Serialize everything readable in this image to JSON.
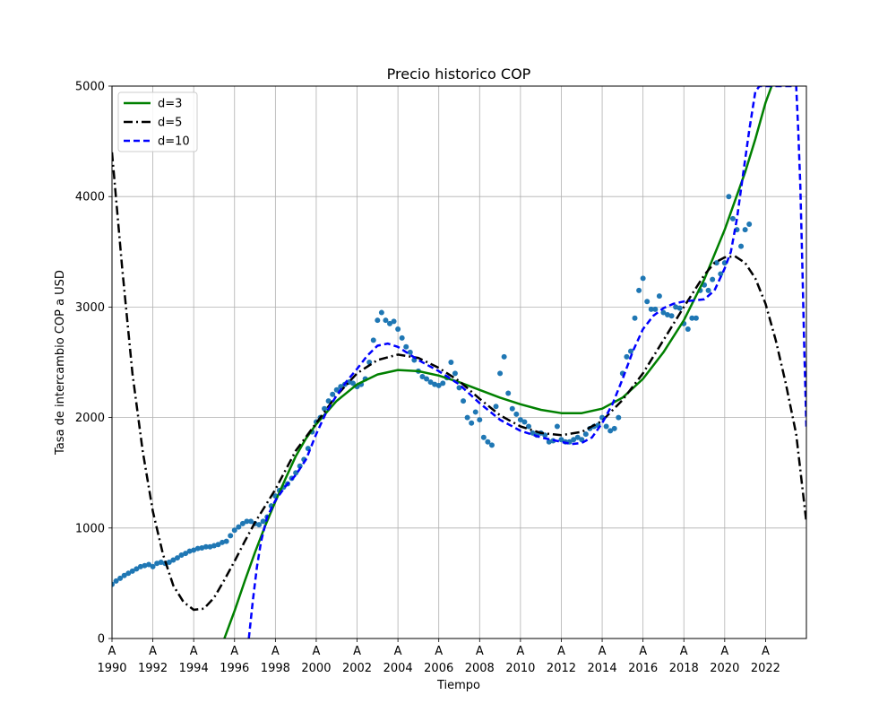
{
  "chart_data": {
    "type": "scatter",
    "title": "Precio historico COP",
    "xlabel": "Tiempo",
    "ylabel": "Tasa de intercambio COP a USD",
    "xlim": [
      1990.0,
      2024.0
    ],
    "ylim": [
      0,
      5000
    ],
    "grid": true,
    "legend_position": "top-left",
    "x_ticks": [
      {
        "value": 1990,
        "label": "A",
        "year": "1990"
      },
      {
        "value": 1992,
        "label": "A",
        "year": "1992"
      },
      {
        "value": 1994,
        "label": "A",
        "year": "1994"
      },
      {
        "value": 1996,
        "label": "A",
        "year": "1996"
      },
      {
        "value": 1998,
        "label": "A",
        "year": "1998"
      },
      {
        "value": 2000,
        "label": "A",
        "year": "2000"
      },
      {
        "value": 2002,
        "label": "A",
        "year": "2002"
      },
      {
        "value": 2004,
        "label": "A",
        "year": "2004"
      },
      {
        "value": 2006,
        "label": "A",
        "year": "2006"
      },
      {
        "value": 2008,
        "label": "A",
        "year": "2008"
      },
      {
        "value": 2010,
        "label": "A",
        "year": "2010"
      },
      {
        "value": 2012,
        "label": "A",
        "year": "2012"
      },
      {
        "value": 2014,
        "label": "A",
        "year": "2014"
      },
      {
        "value": 2016,
        "label": "A",
        "year": "2016"
      },
      {
        "value": 2018,
        "label": "A",
        "year": "2018"
      },
      {
        "value": 2020,
        "label": "A",
        "year": "2020"
      },
      {
        "value": 2022,
        "label": "A",
        "year": "2022"
      }
    ],
    "y_ticks": [
      {
        "value": 0,
        "label": "0"
      },
      {
        "value": 1000,
        "label": "1000"
      },
      {
        "value": 2000,
        "label": "2000"
      },
      {
        "value": 3000,
        "label": "3000"
      },
      {
        "value": 4000,
        "label": "4000"
      },
      {
        "value": 5000,
        "label": "5000"
      }
    ],
    "scatter": {
      "color": "#1f77b4",
      "points": [
        [
          1990.0,
          490
        ],
        [
          1990.2,
          520
        ],
        [
          1990.4,
          545
        ],
        [
          1990.6,
          570
        ],
        [
          1990.8,
          590
        ],
        [
          1991.0,
          610
        ],
        [
          1991.2,
          630
        ],
        [
          1991.4,
          650
        ],
        [
          1991.6,
          660
        ],
        [
          1991.8,
          670
        ],
        [
          1992.0,
          650
        ],
        [
          1992.2,
          680
        ],
        [
          1992.4,
          690
        ],
        [
          1992.6,
          680
        ],
        [
          1992.8,
          690
        ],
        [
          1993.0,
          710
        ],
        [
          1993.2,
          730
        ],
        [
          1993.4,
          755
        ],
        [
          1993.6,
          770
        ],
        [
          1993.8,
          790
        ],
        [
          1994.0,
          800
        ],
        [
          1994.2,
          815
        ],
        [
          1994.4,
          820
        ],
        [
          1994.6,
          830
        ],
        [
          1994.8,
          830
        ],
        [
          1995.0,
          840
        ],
        [
          1995.2,
          850
        ],
        [
          1995.4,
          870
        ],
        [
          1995.6,
          880
        ],
        [
          1995.8,
          930
        ],
        [
          1996.0,
          980
        ],
        [
          1996.2,
          1010
        ],
        [
          1996.4,
          1040
        ],
        [
          1996.6,
          1060
        ],
        [
          1996.8,
          1060
        ],
        [
          1997.0,
          1040
        ],
        [
          1997.2,
          1030
        ],
        [
          1997.4,
          1060
        ],
        [
          1997.6,
          1100
        ],
        [
          1997.8,
          1200
        ],
        [
          1998.0,
          1290
        ],
        [
          1998.2,
          1340
        ],
        [
          1998.4,
          1370
        ],
        [
          1998.6,
          1400
        ],
        [
          1998.8,
          1450
        ],
        [
          1999.0,
          1500
        ],
        [
          1999.2,
          1560
        ],
        [
          1999.4,
          1620
        ],
        [
          1999.6,
          1720
        ],
        [
          1999.8,
          1870
        ],
        [
          2000.0,
          1960
        ],
        [
          2000.2,
          2000
        ],
        [
          2000.4,
          2080
        ],
        [
          2000.6,
          2150
        ],
        [
          2000.8,
          2210
        ],
        [
          2001.0,
          2250
        ],
        [
          2001.2,
          2280
        ],
        [
          2001.4,
          2300
        ],
        [
          2001.6,
          2320
        ],
        [
          2001.8,
          2310
        ],
        [
          2002.0,
          2280
        ],
        [
          2002.2,
          2300
        ],
        [
          2002.4,
          2350
        ],
        [
          2002.6,
          2500
        ],
        [
          2002.8,
          2700
        ],
        [
          2003.0,
          2880
        ],
        [
          2003.2,
          2950
        ],
        [
          2003.4,
          2880
        ],
        [
          2003.6,
          2850
        ],
        [
          2003.8,
          2870
        ],
        [
          2004.0,
          2800
        ],
        [
          2004.2,
          2720
        ],
        [
          2004.4,
          2640
        ],
        [
          2004.6,
          2590
        ],
        [
          2004.8,
          2520
        ],
        [
          2005.0,
          2420
        ],
        [
          2005.2,
          2370
        ],
        [
          2005.4,
          2350
        ],
        [
          2005.6,
          2320
        ],
        [
          2005.8,
          2300
        ],
        [
          2006.0,
          2290
        ],
        [
          2006.2,
          2310
        ],
        [
          2006.4,
          2360
        ],
        [
          2006.6,
          2500
        ],
        [
          2006.8,
          2400
        ],
        [
          2007.0,
          2270
        ],
        [
          2007.2,
          2150
        ],
        [
          2007.4,
          2000
        ],
        [
          2007.6,
          1950
        ],
        [
          2007.8,
          2050
        ],
        [
          2008.0,
          1980
        ],
        [
          2008.2,
          1820
        ],
        [
          2008.4,
          1780
        ],
        [
          2008.6,
          1750
        ],
        [
          2008.8,
          2100
        ],
        [
          2009.0,
          2400
        ],
        [
          2009.2,
          2550
        ],
        [
          2009.4,
          2220
        ],
        [
          2009.6,
          2080
        ],
        [
          2009.8,
          2030
        ],
        [
          2010.0,
          1980
        ],
        [
          2010.2,
          1960
        ],
        [
          2010.4,
          1920
        ],
        [
          2010.6,
          1860
        ],
        [
          2010.8,
          1840
        ],
        [
          2011.0,
          1860
        ],
        [
          2011.2,
          1840
        ],
        [
          2011.4,
          1780
        ],
        [
          2011.6,
          1790
        ],
        [
          2011.8,
          1920
        ],
        [
          2012.0,
          1800
        ],
        [
          2012.2,
          1780
        ],
        [
          2012.4,
          1780
        ],
        [
          2012.6,
          1800
        ],
        [
          2012.8,
          1820
        ],
        [
          2013.0,
          1800
        ],
        [
          2013.2,
          1850
        ],
        [
          2013.4,
          1900
        ],
        [
          2013.6,
          1920
        ],
        [
          2013.8,
          1930
        ],
        [
          2014.0,
          2000
        ],
        [
          2014.2,
          1920
        ],
        [
          2014.4,
          1880
        ],
        [
          2014.6,
          1900
        ],
        [
          2014.8,
          2000
        ],
        [
          2015.0,
          2400
        ],
        [
          2015.2,
          2550
        ],
        [
          2015.4,
          2600
        ],
        [
          2015.6,
          2900
        ],
        [
          2015.8,
          3150
        ],
        [
          2016.0,
          3260
        ],
        [
          2016.2,
          3050
        ],
        [
          2016.4,
          2980
        ],
        [
          2016.6,
          2980
        ],
        [
          2016.8,
          3100
        ],
        [
          2017.0,
          2950
        ],
        [
          2017.2,
          2930
        ],
        [
          2017.4,
          2920
        ],
        [
          2017.6,
          3000
        ],
        [
          2017.8,
          2990
        ],
        [
          2018.0,
          2850
        ],
        [
          2018.2,
          2800
        ],
        [
          2018.4,
          2900
        ],
        [
          2018.6,
          2900
        ],
        [
          2018.8,
          3150
        ],
        [
          2019.0,
          3200
        ],
        [
          2019.2,
          3150
        ],
        [
          2019.4,
          3250
        ],
        [
          2019.6,
          3400
        ],
        [
          2019.8,
          3300
        ],
        [
          2020.0,
          3400
        ],
        [
          2020.2,
          4000
        ],
        [
          2020.4,
          3800
        ],
        [
          2020.6,
          3700
        ],
        [
          2020.8,
          3550
        ],
        [
          2021.0,
          3700
        ],
        [
          2021.2,
          3750
        ]
      ]
    },
    "series": [
      {
        "name": "d=3",
        "color": "#008000",
        "dash": "solid",
        "x": [
          1995.5,
          1996.0,
          1996.5,
          1997.0,
          1997.5,
          1998.0,
          1998.5,
          1999.0,
          1999.5,
          2000.0,
          2001.0,
          2002.0,
          2003.0,
          2004.0,
          2005.0,
          2006.0,
          2007.0,
          2008.0,
          2009.0,
          2010.0,
          2011.0,
          2012.0,
          2013.0,
          2014.0,
          2015.0,
          2016.0,
          2017.0,
          2018.0,
          2019.0,
          2020.0,
          2021.0,
          2021.5,
          2022.0,
          2022.3
        ],
        "y": [
          0,
          250,
          520,
          780,
          1020,
          1240,
          1450,
          1650,
          1810,
          1940,
          2150,
          2300,
          2390,
          2430,
          2420,
          2380,
          2320,
          2250,
          2180,
          2120,
          2070,
          2040,
          2040,
          2080,
          2180,
          2350,
          2590,
          2880,
          3250,
          3700,
          4220,
          4520,
          4850,
          5000
        ]
      },
      {
        "name": "d=5",
        "color": "#000000",
        "dash": "dashdot",
        "x": [
          1990.0,
          1990.5,
          1991.0,
          1991.5,
          1992.0,
          1992.5,
          1993.0,
          1993.5,
          1994.0,
          1994.5,
          1995.0,
          1995.5,
          1996.0,
          1996.5,
          1997.0,
          1997.5,
          1998.0,
          1999.0,
          2000.0,
          2001.0,
          2002.0,
          2003.0,
          2004.0,
          2005.0,
          2006.0,
          2007.0,
          2008.0,
          2009.0,
          2010.0,
          2011.0,
          2012.0,
          2013.0,
          2014.0,
          2015.0,
          2016.0,
          2017.0,
          2018.0,
          2019.0,
          2019.5,
          2020.0,
          2020.5,
          2021.0,
          2021.5,
          2022.0,
          2022.5,
          2023.0,
          2023.5,
          2024.0
        ],
        "y": [
          4400,
          3350,
          2400,
          1700,
          1150,
          760,
          480,
          330,
          260,
          270,
          370,
          530,
          700,
          880,
          1050,
          1200,
          1350,
          1700,
          1950,
          2200,
          2400,
          2520,
          2570,
          2540,
          2450,
          2330,
          2170,
          2020,
          1920,
          1860,
          1840,
          1870,
          1970,
          2160,
          2400,
          2700,
          3000,
          3290,
          3400,
          3450,
          3460,
          3400,
          3260,
          3030,
          2700,
          2300,
          1850,
          1050
        ]
      },
      {
        "name": "d=10",
        "color": "#0000ff",
        "dash": "dashed",
        "x": [
          1996.7,
          1996.9,
          1997.1,
          1997.3,
          1997.6,
          1998.0,
          1998.5,
          1999.0,
          1999.5,
          2000.0,
          2000.5,
          2001.0,
          2001.5,
          2002.0,
          2002.5,
          2003.0,
          2003.5,
          2004.0,
          2004.5,
          2005.0,
          2005.5,
          2006.0,
          2007.0,
          2008.0,
          2009.0,
          2010.0,
          2011.0,
          2012.0,
          2012.5,
          2013.0,
          2013.5,
          2014.0,
          2014.5,
          2015.0,
          2015.5,
          2016.0,
          2016.5,
          2017.0,
          2017.5,
          2018.0,
          2018.5,
          2019.0,
          2019.5,
          2020.0,
          2020.3,
          2020.6,
          2020.9,
          2021.2,
          2021.5,
          2021.7,
          2023.5,
          2023.6,
          2023.7,
          2023.8,
          2023.9,
          2024.0
        ],
        "y": [
          0,
          350,
          650,
          880,
          1100,
          1250,
          1380,
          1480,
          1620,
          1850,
          2050,
          2200,
          2330,
          2440,
          2560,
          2650,
          2670,
          2640,
          2580,
          2520,
          2470,
          2420,
          2300,
          2130,
          1980,
          1880,
          1820,
          1780,
          1760,
          1770,
          1820,
          1950,
          2120,
          2350,
          2600,
          2800,
          2920,
          2990,
          3030,
          3050,
          3060,
          3070,
          3150,
          3350,
          3500,
          3800,
          4200,
          4600,
          4950,
          5000,
          5000,
          4600,
          4100,
          3400,
          2600,
          1900
        ]
      }
    ]
  }
}
